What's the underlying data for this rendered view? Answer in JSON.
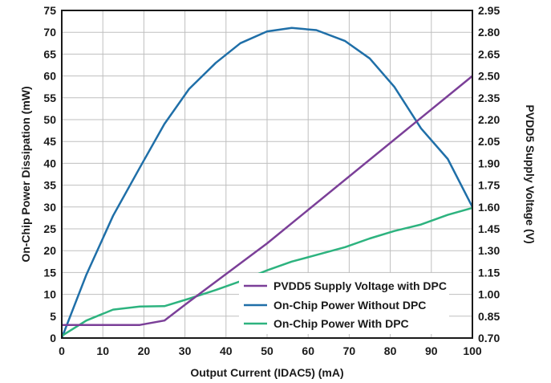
{
  "chart_data": {
    "type": "line",
    "title": "",
    "xlabel": "Output Current (IDAC5) (mA)",
    "ylabel": "On-Chip Power Dissipation (mW)",
    "y2label": "PVDD5 Supply Voltage (V)",
    "xlim": [
      0,
      100
    ],
    "ylim": [
      0,
      75
    ],
    "y2lim": [
      0.7,
      2.95
    ],
    "x_ticks": [
      "0",
      "10",
      "20",
      "30",
      "40",
      "50",
      "60",
      "70",
      "80",
      "90",
      "100"
    ],
    "y_ticks": [
      "0",
      "5",
      "10",
      "15",
      "20",
      "25",
      "30",
      "35",
      "40",
      "45",
      "50",
      "55",
      "60",
      "65",
      "70",
      "75"
    ],
    "y2_ticks": [
      "0.70",
      "0.85",
      "1.00",
      "1.15",
      "1.30",
      "1.45",
      "1.60",
      "1.75",
      "1.90",
      "2.05",
      "2.20",
      "2.35",
      "2.50",
      "2.65",
      "2.80",
      "2.95"
    ],
    "grid": true,
    "legend_position": "bottom-right",
    "series": [
      {
        "name": "PVDD5 Supply Voltage with DPC",
        "axis": "right",
        "color": "#7b3f98",
        "x": [
          0,
          6,
          12.5,
          19,
          25,
          31,
          50,
          100
        ],
        "y": [
          0.79,
          0.79,
          0.79,
          0.79,
          0.82,
          0.95,
          1.35,
          2.5
        ]
      },
      {
        "name": "On-Chip Power Without DPC",
        "axis": "left",
        "color": "#1f6fa8",
        "x": [
          0,
          6,
          12.5,
          19,
          25,
          31,
          37.5,
          43.5,
          50,
          56,
          62,
          69,
          75,
          81,
          87.5,
          94,
          100
        ],
        "y": [
          0,
          14.5,
          28,
          39,
          49,
          57,
          63,
          67.5,
          70.2,
          71,
          70.5,
          68,
          64,
          57.5,
          48,
          41,
          30
        ]
      },
      {
        "name": "On-Chip Power With DPC",
        "axis": "left",
        "color": "#2db37f",
        "x": [
          0,
          6,
          12.5,
          19,
          25,
          31,
          37.5,
          43.5,
          50,
          56,
          62,
          69,
          75,
          81,
          87.5,
          94,
          100
        ],
        "y": [
          0.5,
          4,
          6.5,
          7.2,
          7.3,
          9,
          11,
          13,
          15.5,
          17.5,
          19,
          20.8,
          22.8,
          24.5,
          26,
          28.2,
          29.8
        ]
      }
    ]
  }
}
